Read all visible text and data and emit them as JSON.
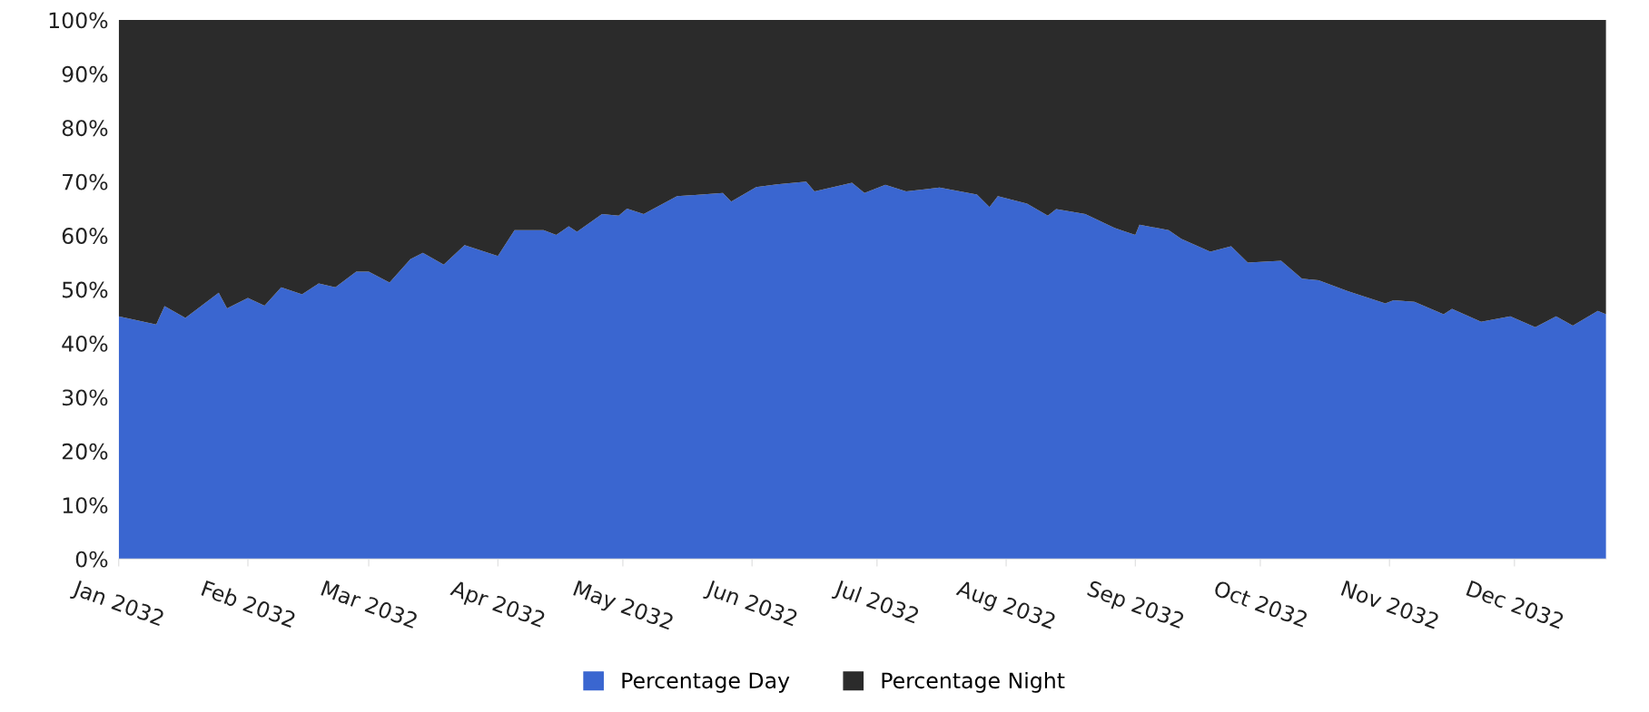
{
  "chart_data": {
    "type": "area",
    "stacked": true,
    "x": [
      "2032-01-01",
      "2032-01-10",
      "2032-01-12",
      "2032-01-17",
      "2032-01-25",
      "2032-01-27",
      "2032-02-01",
      "2032-02-05",
      "2032-02-09",
      "2032-02-14",
      "2032-02-18",
      "2032-02-22",
      "2032-02-27",
      "2032-03-01",
      "2032-03-06",
      "2032-03-11",
      "2032-03-14",
      "2032-03-19",
      "2032-03-24",
      "2032-04-01",
      "2032-04-05",
      "2032-04-12",
      "2032-04-15",
      "2032-04-18",
      "2032-04-20",
      "2032-04-26",
      "2032-04-30",
      "2032-05-02",
      "2032-05-06",
      "2032-05-14",
      "2032-05-25",
      "2032-05-27",
      "2032-06-02",
      "2032-06-07",
      "2032-06-14",
      "2032-06-16",
      "2032-06-25",
      "2032-06-28",
      "2032-07-03",
      "2032-07-08",
      "2032-07-16",
      "2032-07-25",
      "2032-07-28",
      "2032-07-30",
      "2032-08-06",
      "2032-08-11",
      "2032-08-13",
      "2032-08-20",
      "2032-08-27",
      "2032-09-01",
      "2032-09-02",
      "2032-09-09",
      "2032-09-12",
      "2032-09-19",
      "2032-09-24",
      "2032-09-28",
      "2032-10-06",
      "2032-10-11",
      "2032-10-15",
      "2032-10-22",
      "2032-10-31",
      "2032-11-02",
      "2032-11-07",
      "2032-11-14",
      "2032-11-16",
      "2032-11-23",
      "2032-11-30",
      "2032-12-06",
      "2032-12-11",
      "2032-12-15",
      "2032-12-21",
      "2032-12-23"
    ],
    "series": [
      {
        "name": "Percentage Day",
        "color": "#3a66d0",
        "values": [
          45,
          43.5,
          46.9,
          44.7,
          49.4,
          46.5,
          48.4,
          47,
          50.4,
          49.1,
          51.1,
          50.4,
          53.3,
          53.3,
          51.3,
          55.6,
          56.8,
          54.6,
          58.2,
          56.2,
          61,
          61,
          60.1,
          61.7,
          60.7,
          64,
          63.7,
          65,
          64,
          67.3,
          67.9,
          66.3,
          69,
          69.5,
          70,
          68.2,
          69.8,
          67.9,
          69.4,
          68.2,
          68.9,
          67.6,
          65.3,
          67.3,
          65.9,
          63.7,
          64.9,
          64,
          61.4,
          60.1,
          62,
          61,
          59.4,
          57,
          58,
          55,
          55.3,
          52,
          51.7,
          49.7,
          47.4,
          48,
          47.7,
          45.4,
          46.4,
          44,
          45,
          43,
          45,
          43.3,
          46,
          45.4
        ]
      },
      {
        "name": "Percentage Night",
        "color": "#2b2b2b",
        "values": [
          55,
          56.5,
          53.1,
          55.3,
          50.6,
          53.5,
          51.6,
          53,
          49.6,
          50.9,
          48.9,
          49.6,
          46.7,
          46.7,
          48.7,
          44.4,
          43.2,
          45.4,
          41.8,
          43.8,
          39,
          39,
          39.9,
          38.3,
          39.3,
          36,
          36.3,
          35,
          36,
          32.7,
          32.1,
          33.7,
          31,
          30.5,
          30,
          31.8,
          30.2,
          32.1,
          30.6,
          31.8,
          31.1,
          32.4,
          34.7,
          32.7,
          34.1,
          36.3,
          35.1,
          36,
          38.6,
          39.9,
          38,
          39,
          40.6,
          43,
          42,
          45,
          44.7,
          48,
          48.3,
          50.3,
          52.6,
          52,
          52.3,
          54.6,
          53.6,
          56,
          55,
          57,
          55,
          56.7,
          54,
          54.6
        ]
      }
    ],
    "xlim": [
      "2032-01-01",
      "2032-12-23"
    ],
    "xticks": [
      {
        "value": "2032-01-01",
        "label": "Jan 2032"
      },
      {
        "value": "2032-02-01",
        "label": "Feb 2032"
      },
      {
        "value": "2032-03-01",
        "label": "Mar 2032"
      },
      {
        "value": "2032-04-01",
        "label": "Apr 2032"
      },
      {
        "value": "2032-05-01",
        "label": "May 2032"
      },
      {
        "value": "2032-06-01",
        "label": "Jun 2032"
      },
      {
        "value": "2032-07-01",
        "label": "Jul 2032"
      },
      {
        "value": "2032-08-01",
        "label": "Aug 2032"
      },
      {
        "value": "2032-09-01",
        "label": "Sep 2032"
      },
      {
        "value": "2032-10-01",
        "label": "Oct 2032"
      },
      {
        "value": "2032-11-01",
        "label": "Nov 2032"
      },
      {
        "value": "2032-12-01",
        "label": "Dec 2032"
      }
    ],
    "ylim": [
      0,
      100
    ],
    "yticks": [
      {
        "value": 0,
        "label": "0%"
      },
      {
        "value": 10,
        "label": "10%"
      },
      {
        "value": 20,
        "label": "20%"
      },
      {
        "value": 30,
        "label": "30%"
      },
      {
        "value": 40,
        "label": "40%"
      },
      {
        "value": 50,
        "label": "50%"
      },
      {
        "value": 60,
        "label": "60%"
      },
      {
        "value": 70,
        "label": "70%"
      },
      {
        "value": 80,
        "label": "80%"
      },
      {
        "value": 90,
        "label": "90%"
      },
      {
        "value": 100,
        "label": "100%"
      }
    ],
    "legend": "bottom"
  }
}
